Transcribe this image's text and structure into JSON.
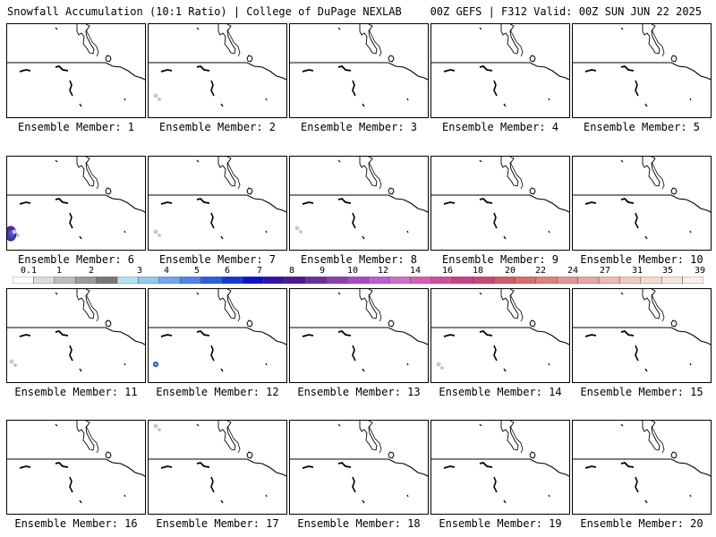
{
  "header": {
    "left": "Snowfall Accumulation (10:1 Ratio) | College of DuPage NEXLAB",
    "right": "00Z GEFS | F312 Valid: 00Z SUN JUN 22 2025"
  },
  "colorbar": {
    "labels": [
      "0.1",
      "1",
      "2",
      "3",
      "4",
      "5",
      "6",
      "7",
      "8",
      "9",
      "10",
      "12",
      "14",
      "16",
      "18",
      "20",
      "22",
      "24",
      "27",
      "31",
      "35",
      "39"
    ],
    "colors": [
      "#ffffff",
      "#dcdcdc",
      "#bebebe",
      "#9b9b9b",
      "#787878",
      "#aee4ee",
      "#8fc8f2",
      "#6ea6f0",
      "#4d84ee",
      "#2c5fe8",
      "#1438e0",
      "#1010d4",
      "#3412b0",
      "#52149a",
      "#6e2f98",
      "#8a40b2",
      "#a64cc4",
      "#c05cd6",
      "#d46ccc",
      "#da5cb6",
      "#d44c9e",
      "#ce3e8a",
      "#cc4478",
      "#d45868",
      "#dc6c6a",
      "#e2807e",
      "#e69490",
      "#eaa6a0",
      "#eebab0",
      "#f2cabe",
      "#f6d8cc",
      "#f8e4da",
      "#fbeee6"
    ]
  },
  "members": [
    {
      "label": "Ensemble Member: 1",
      "snow": []
    },
    {
      "label": "Ensemble Member: 2",
      "snow": [
        "gray"
      ]
    },
    {
      "label": "Ensemble Member: 3",
      "snow": []
    },
    {
      "label": "Ensemble Member: 4",
      "snow": []
    },
    {
      "label": "Ensemble Member: 5",
      "snow": []
    },
    {
      "label": "Ensemble Member: 6",
      "snow": [
        "blue-purple",
        "gray"
      ]
    },
    {
      "label": "Ensemble Member: 7",
      "snow": [
        "gray"
      ]
    },
    {
      "label": "Ensemble Member: 8",
      "snow": [
        "gray"
      ]
    },
    {
      "label": "Ensemble Member: 9",
      "snow": []
    },
    {
      "label": "Ensemble Member: 10",
      "snow": []
    },
    {
      "label": "Ensemble Member: 11",
      "snow": [
        "gray"
      ]
    },
    {
      "label": "Ensemble Member: 12",
      "snow": [
        "blue"
      ]
    },
    {
      "label": "Ensemble Member: 13",
      "snow": []
    },
    {
      "label": "Ensemble Member: 14",
      "snow": [
        "gray"
      ]
    },
    {
      "label": "Ensemble Member: 15",
      "snow": []
    },
    {
      "label": "Ensemble Member: 16",
      "snow": []
    },
    {
      "label": "Ensemble Member: 17",
      "snow": [
        "gray"
      ]
    },
    {
      "label": "Ensemble Member: 18",
      "snow": []
    },
    {
      "label": "Ensemble Member: 19",
      "snow": []
    },
    {
      "label": "Ensemble Member: 20",
      "snow": []
    }
  ]
}
